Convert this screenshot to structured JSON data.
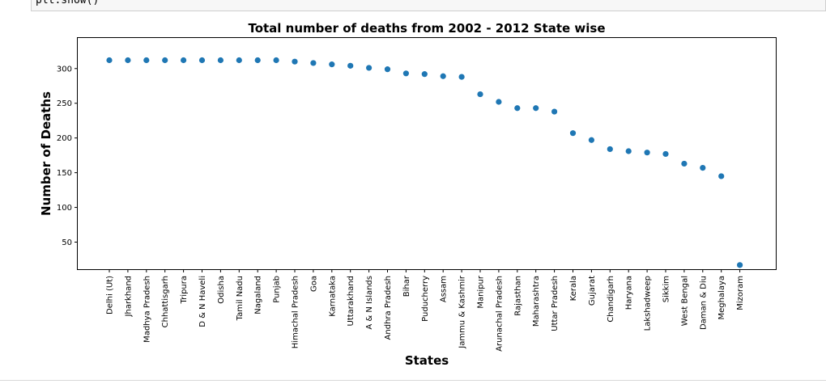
{
  "code": {
    "text": "plt.show()"
  },
  "chart_data": {
    "type": "scatter",
    "title": "Total number of deaths from 2002 - 2012 State wise",
    "xlabel": "States",
    "ylabel": "Number of Deaths",
    "ylim": [
      11,
      344
    ],
    "yticks": [
      50,
      100,
      150,
      200,
      250,
      300
    ],
    "grid": false,
    "marker_color": "#1f77b4",
    "categories": [
      "Delhi (Ut)",
      "Jharkhand",
      "Madhya Pradesh",
      "Chhattisgarh",
      "Tripura",
      "D & N Haveli",
      "Odisha",
      "Tamil Nadu",
      "Nagaland",
      "Punjab",
      "Himachal Pradesh",
      "Goa",
      "Karnataka",
      "Uttarakhand",
      "A & N Islands",
      "Andhra Pradesh",
      "Bihar",
      "Puducherry",
      "Assam",
      "Jammu & Kashmir",
      "Manipur",
      "Arunachal Pradesh",
      "Rajasthan",
      "Maharashtra",
      "Uttar Pradesh",
      "Kerala",
      "Gujarat",
      "Chandigarh",
      "Haryana",
      "Lakshadweep",
      "Sikkim",
      "West Bengal",
      "Daman & Diu",
      "Meghalaya",
      "Mizoram"
    ],
    "values": [
      312,
      312,
      312,
      312,
      312,
      312,
      312,
      312,
      312,
      312,
      310,
      308,
      306,
      304,
      301,
      299,
      293,
      292,
      289,
      288,
      263,
      252,
      243,
      243,
      238,
      207,
      197,
      184,
      181,
      179,
      177,
      163,
      157,
      145,
      17
    ]
  }
}
